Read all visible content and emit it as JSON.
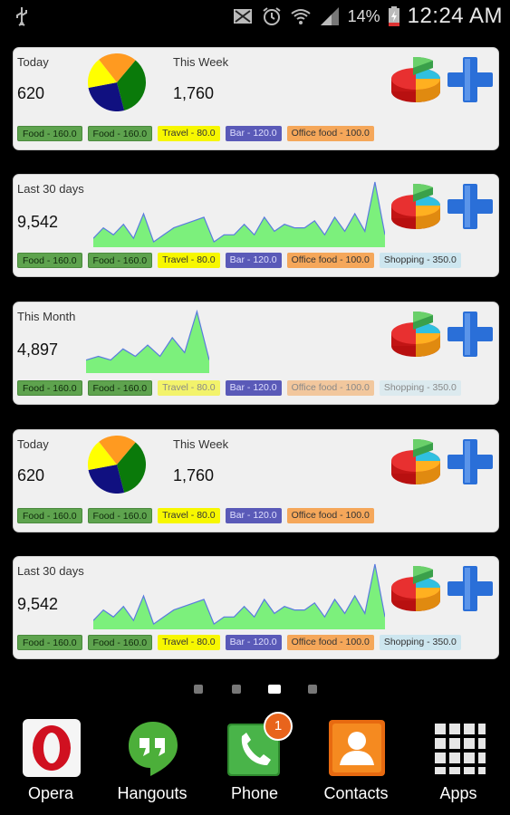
{
  "status_bar": {
    "battery_percent": "14%",
    "time": "12:24 AM",
    "icons": [
      "usb-icon",
      "sim-icon",
      "alarm-icon",
      "wifi-icon",
      "signal-icon",
      "battery-charging-icon"
    ]
  },
  "widgets": [
    {
      "type": "summary",
      "label_left": "Today",
      "value_left": "620",
      "label_right": "This Week",
      "value_right": "1,760",
      "chips": [
        "Food - 160.0",
        "Food - 160.0",
        "Travel - 80.0",
        "Bar - 120.0",
        "Office food - 100.0"
      ]
    },
    {
      "type": "trend",
      "label": "Last 30 days",
      "value": "9,542",
      "chips": [
        "Food - 160.0",
        "Food - 160.0",
        "Travel - 80.0",
        "Bar - 120.0",
        "Office food - 100.0",
        "Shopping - 350.0"
      ]
    },
    {
      "type": "trend",
      "label": "This Month",
      "value": "4,897",
      "chips": [
        "Food - 160.0",
        "Food - 160.0",
        "Travel - 80.0",
        "Bar - 120.0",
        "Office food - 100.0",
        "Shopping - 350.0"
      ]
    },
    {
      "type": "summary",
      "label_left": "Today",
      "value_left": "620",
      "label_right": "This Week",
      "value_right": "1,760",
      "chips": [
        "Food - 160.0",
        "Food - 160.0",
        "Travel - 80.0",
        "Bar - 120.0",
        "Office food - 100.0"
      ]
    },
    {
      "type": "trend",
      "label": "Last 30 days",
      "value": "9,542",
      "chips": [
        "Food - 160.0",
        "Food - 160.0",
        "Travel - 80.0",
        "Bar - 120.0",
        "Office food - 100.0",
        "Shopping - 350.0"
      ]
    }
  ],
  "page_indicator": {
    "count": 4,
    "active": 2
  },
  "dock": [
    {
      "label": "Opera",
      "icon": "opera-icon"
    },
    {
      "label": "Hangouts",
      "icon": "hangouts-icon"
    },
    {
      "label": "Phone",
      "icon": "phone-icon",
      "badge": "1"
    },
    {
      "label": "Contacts",
      "icon": "contacts-icon"
    },
    {
      "label": "Apps",
      "icon": "apps-grid-icon"
    }
  ],
  "colors": {
    "pie_green": "#0a7a0a",
    "pie_navy": "#101080",
    "pie_yellow": "#ffff00",
    "pie_orange": "#ff9a20",
    "trend_fill": "#7cf07c",
    "trend_stroke": "#5a7adf",
    "plus_blue": "#2a6fd8"
  },
  "chart_data": [
    {
      "type": "pie",
      "categories": [
        "Food",
        "Bar",
        "Travel",
        "Office food"
      ],
      "values": [
        160,
        120,
        80,
        100
      ]
    },
    {
      "type": "area",
      "values": [
        2,
        5,
        3,
        6,
        2,
        9,
        1,
        3,
        5,
        6,
        7,
        8,
        1,
        3,
        3,
        6,
        3,
        8,
        4,
        6,
        5,
        5,
        7,
        3,
        8,
        4,
        9,
        4,
        18,
        3
      ]
    },
    {
      "type": "area",
      "values": [
        3,
        4,
        3,
        6,
        4,
        7,
        4,
        9,
        5,
        16,
        3
      ]
    }
  ]
}
